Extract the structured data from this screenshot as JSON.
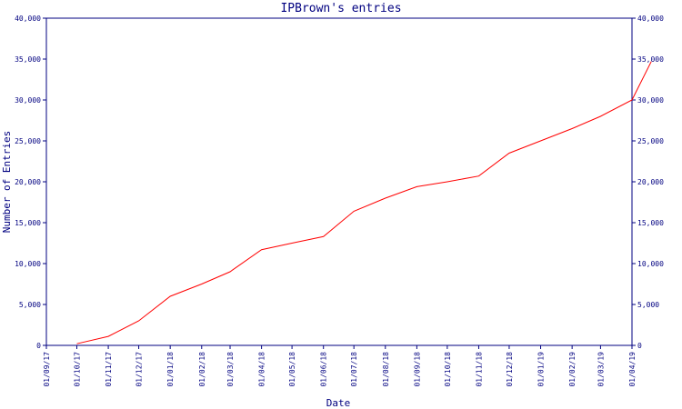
{
  "chart_data": {
    "type": "line",
    "title": "IPBrown's entries",
    "xlabel": "Date",
    "ylabel": "Number of Entries",
    "ylim": [
      0,
      40000
    ],
    "y_ticks": [
      "0",
      "5,000",
      "10,000",
      "15,000",
      "20,000",
      "25,000",
      "30,000",
      "35,000",
      "40,000"
    ],
    "y_ticks_right": [
      "0",
      "5,000",
      "10,000",
      "15,000",
      "20,000",
      "25,000",
      "30,000",
      "35,000",
      "40,000"
    ],
    "x_ticks": [
      "01/09/17",
      "01/10/17",
      "01/11/17",
      "01/12/17",
      "01/01/18",
      "01/02/18",
      "01/03/18",
      "01/04/18",
      "01/05/18",
      "01/06/18",
      "01/07/18",
      "01/08/18",
      "01/09/18",
      "01/10/18",
      "01/11/18",
      "01/12/18",
      "01/01/19",
      "01/02/19",
      "01/03/19",
      "01/04/19"
    ],
    "grid": false,
    "colors": {
      "axis": "#000080",
      "line": "#ff0000",
      "text": "#000080"
    },
    "series": [
      {
        "color": "#ff0000",
        "points": [
          {
            "x": "2017-10-01",
            "y": 200
          },
          {
            "x": "2017-11-01",
            "y": 1100
          },
          {
            "x": "2017-12-01",
            "y": 3000
          },
          {
            "x": "2018-01-01",
            "y": 6000
          },
          {
            "x": "2018-02-01",
            "y": 7500
          },
          {
            "x": "2018-03-01",
            "y": 9000
          },
          {
            "x": "2018-04-01",
            "y": 11700
          },
          {
            "x": "2018-05-01",
            "y": 12500
          },
          {
            "x": "2018-06-01",
            "y": 13300
          },
          {
            "x": "2018-07-01",
            "y": 16400
          },
          {
            "x": "2018-08-01",
            "y": 18000
          },
          {
            "x": "2018-09-01",
            "y": 19400
          },
          {
            "x": "2018-10-01",
            "y": 20000
          },
          {
            "x": "2018-11-01",
            "y": 20700
          },
          {
            "x": "2018-12-01",
            "y": 23500
          },
          {
            "x": "2019-01-01",
            "y": 25000
          },
          {
            "x": "2019-02-01",
            "y": 26500
          },
          {
            "x": "2019-03-01",
            "y": 28000
          },
          {
            "x": "2019-04-01",
            "y": 30000
          },
          {
            "x": "2019-04-20",
            "y": 34700
          }
        ]
      }
    ]
  }
}
